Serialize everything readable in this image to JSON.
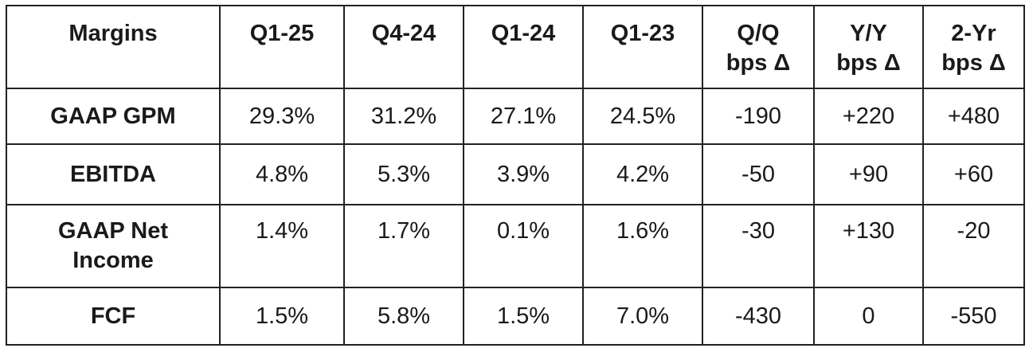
{
  "chart_data": {
    "type": "table",
    "columns": [
      "Margins",
      "Q1-25",
      "Q4-24",
      "Q1-24",
      "Q1-23",
      "Q/Q bps Δ",
      "Y/Y bps Δ",
      "2-Yr bps Δ"
    ],
    "header": {
      "margins": "Margins",
      "q1_25": "Q1-25",
      "q4_24": "Q4-24",
      "q1_24": "Q1-24",
      "q1_23": "Q1-23",
      "qq_line1": "Q/Q",
      "qq_line2": "bps Δ",
      "yy_line1": "Y/Y",
      "yy_line2": "bps Δ",
      "yr2_line1": "2-Yr",
      "yr2_line2": "bps Δ"
    },
    "rows": [
      {
        "label": "GAAP GPM",
        "values": [
          "29.3%",
          "31.2%",
          "27.1%",
          "24.5%",
          "-190",
          "+220",
          "+480"
        ]
      },
      {
        "label": "EBITDA",
        "values": [
          "4.8%",
          "5.3%",
          "3.9%",
          "4.2%",
          "-50",
          "+90",
          "+60"
        ]
      },
      {
        "label_line1": "GAAP Net",
        "label_line2": "Income",
        "values": [
          "1.4%",
          "1.7%",
          "0.1%",
          "1.6%",
          "-30",
          "+130",
          "-20"
        ]
      },
      {
        "label": "FCF",
        "values": [
          "1.5%",
          "5.8%",
          "1.5%",
          "7.0%",
          "-430",
          "0",
          "-550"
        ]
      }
    ]
  }
}
